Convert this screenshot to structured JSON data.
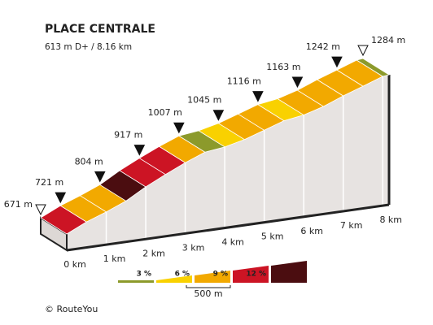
{
  "chart_data": {
    "type": "elevation-profile",
    "title": "PLACE CENTRALE",
    "subtitle": "613 m D+ / 8.16 km",
    "x": [
      0,
      0.5,
      1,
      1.5,
      2,
      2.5,
      3,
      3.5,
      4,
      4.5,
      5,
      5.5,
      6,
      6.5,
      7,
      7.5,
      8,
      8.16
    ],
    "values": [
      671,
      721,
      760,
      804,
      865,
      917,
      965,
      1007,
      1020,
      1045,
      1080,
      1116,
      1132,
      1163,
      1205,
      1242,
      1280,
      1284
    ],
    "markers": {
      "x": [
        0,
        0.5,
        1.5,
        2.5,
        3.5,
        4.5,
        5.5,
        6.5,
        7.5,
        8.16
      ],
      "values": [
        671,
        721,
        804,
        917,
        1007,
        1045,
        1116,
        1163,
        1242,
        1284
      ],
      "value_labels": [
        "671 m",
        "721 m",
        "804 m",
        "917 m",
        "1007 m",
        "1045 m",
        "1116 m",
        "1163 m",
        "1242 m",
        "1284 m"
      ]
    },
    "xticks": [
      {
        "value": 0,
        "label": "0 km"
      },
      {
        "value": 1,
        "label": "1 km"
      },
      {
        "value": 2,
        "label": "2 km"
      },
      {
        "value": 3,
        "label": "3 km"
      },
      {
        "value": 4,
        "label": "4 km"
      },
      {
        "value": 5,
        "label": "5 km"
      },
      {
        "value": 6,
        "label": "6 km"
      },
      {
        "value": 7,
        "label": "7 km"
      },
      {
        "value": 8,
        "label": "8 km"
      }
    ],
    "legend": {
      "thresholds": [
        {
          "value": 3,
          "label": "3 %"
        },
        {
          "value": 6,
          "label": "6 %"
        },
        {
          "value": 9,
          "label": "9 %"
        },
        {
          "value": 12,
          "label": "12 %"
        }
      ],
      "colors": [
        "#8c9a2b",
        "#f9d100",
        "#f2a900",
        "#cc1424",
        "#4b0d10"
      ],
      "scale_label": "500 m"
    },
    "copyright": "© RouteYou"
  }
}
